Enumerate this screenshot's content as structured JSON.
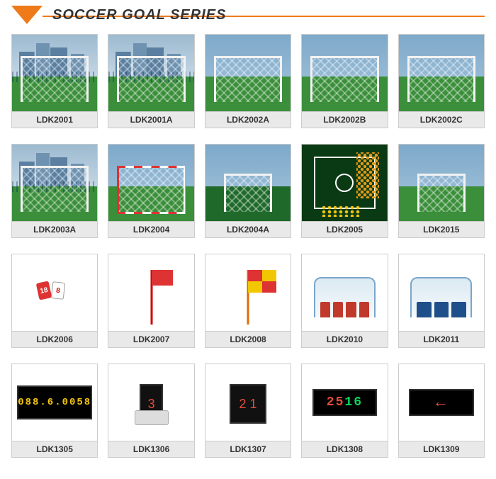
{
  "header": {
    "title": "SOCCER GOAL SERIES",
    "accent": "#ee7a1a"
  },
  "rows": [
    [
      {
        "code": "LDK2001",
        "kind": "goal-city"
      },
      {
        "code": "LDK2001A",
        "kind": "goal-city"
      },
      {
        "code": "LDK2002A",
        "kind": "goal-field"
      },
      {
        "code": "LDK2002B",
        "kind": "goal-field"
      },
      {
        "code": "LDK2002C",
        "kind": "goal-field"
      }
    ],
    [
      {
        "code": "LDK2003A",
        "kind": "goal-city"
      },
      {
        "code": "LDK2004",
        "kind": "goal-red"
      },
      {
        "code": "LDK2004A",
        "kind": "goal-small-dark"
      },
      {
        "code": "LDK2005",
        "kind": "tactic-board"
      },
      {
        "code": "LDK2015",
        "kind": "goal-small-field"
      }
    ],
    [
      {
        "code": "LDK2006",
        "kind": "sub-cards"
      },
      {
        "code": "LDK2007",
        "kind": "flag-red"
      },
      {
        "code": "LDK2008",
        "kind": "flag-check"
      },
      {
        "code": "LDK2010",
        "kind": "shelter-red"
      },
      {
        "code": "LDK2011",
        "kind": "shelter-blue"
      }
    ],
    [
      {
        "code": "LDK1305",
        "kind": "score-yellow",
        "text": "088.6.0058"
      },
      {
        "code": "LDK1306",
        "kind": "hand-red",
        "text": "3"
      },
      {
        "code": "LDK1307",
        "kind": "hand-red2",
        "text": "2 1"
      },
      {
        "code": "LDK1308",
        "kind": "score-rg",
        "r": "25",
        "g": "16"
      },
      {
        "code": "LDK1309",
        "kind": "score-arrow"
      }
    ]
  ]
}
